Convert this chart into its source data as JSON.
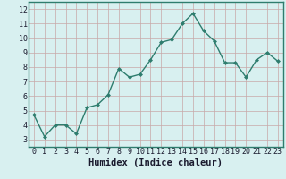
{
  "x": [
    0,
    1,
    2,
    3,
    4,
    5,
    6,
    7,
    8,
    9,
    10,
    11,
    12,
    13,
    14,
    15,
    16,
    17,
    18,
    19,
    20,
    21,
    22,
    23
  ],
  "y": [
    4.7,
    3.2,
    4.0,
    4.0,
    3.4,
    5.2,
    5.4,
    6.1,
    7.9,
    7.3,
    7.5,
    8.5,
    9.7,
    9.9,
    11.0,
    11.7,
    10.5,
    9.8,
    8.3,
    8.3,
    7.3,
    8.5,
    9.0,
    8.4
  ],
  "line_color": "#2e7d6e",
  "marker": "D",
  "marker_size": 2.0,
  "bg_color": "#d8f0f0",
  "grid_color": "#c8a8a8",
  "xlabel": "Humidex (Indice chaleur)",
  "xlim": [
    -0.5,
    23.5
  ],
  "ylim": [
    2.5,
    12.5
  ],
  "yticks": [
    3,
    4,
    5,
    6,
    7,
    8,
    9,
    10,
    11,
    12
  ],
  "xticks": [
    0,
    1,
    2,
    3,
    4,
    5,
    6,
    7,
    8,
    9,
    10,
    11,
    12,
    13,
    14,
    15,
    16,
    17,
    18,
    19,
    20,
    21,
    22,
    23
  ],
  "tick_fontsize": 6.0,
  "xlabel_fontsize": 7.5,
  "line_width": 1.0,
  "spine_color": "#2e7d6e"
}
